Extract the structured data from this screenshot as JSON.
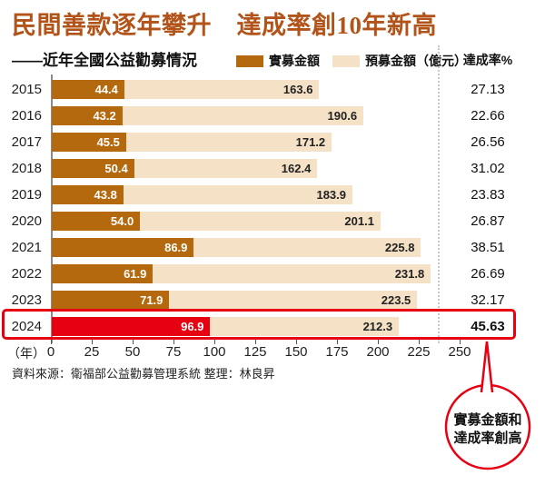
{
  "title": "民間善款逐年攀升　達成率創10年新高",
  "subtitle": "——近年全國公益勸募情況",
  "legend": {
    "actual_label": "實募金額",
    "expected_label": "預募金額（億元）"
  },
  "rate_header": "達成率%",
  "axis_unit_label": "（年）",
  "source": "資料來源：衛福部公益勸募管理系統 整理：林良昇",
  "callout": {
    "line1": "實募金額和",
    "line2": "達成率創高"
  },
  "colors": {
    "title": "#b2541a",
    "actual_bar": "#b5690e",
    "expected_bar": "#f4e1c6",
    "highlight_red": "#e60012"
  },
  "chart_data": {
    "type": "bar",
    "orientation": "horizontal",
    "categories": [
      "2015",
      "2016",
      "2017",
      "2018",
      "2019",
      "2020",
      "2021",
      "2022",
      "2023",
      "2024"
    ],
    "series": [
      {
        "name": "實募金額",
        "values": [
          44.4,
          43.2,
          45.5,
          50.4,
          43.8,
          54.0,
          86.9,
          61.9,
          71.9,
          96.9
        ]
      },
      {
        "name": "預募金額（億元）",
        "values": [
          163.6,
          190.6,
          171.2,
          162.4,
          183.9,
          201.1,
          225.8,
          231.8,
          223.5,
          212.3
        ]
      },
      {
        "name": "達成率%",
        "values": [
          27.13,
          22.66,
          26.56,
          31.02,
          23.83,
          26.87,
          38.51,
          26.69,
          32.17,
          45.63
        ]
      }
    ],
    "x_ticks": [
      0,
      25,
      50,
      75,
      100,
      125,
      150,
      175,
      200,
      225,
      250
    ],
    "xlim": [
      0,
      250
    ],
    "highlight_year": "2024",
    "grid": false,
    "legend_position": "top"
  }
}
